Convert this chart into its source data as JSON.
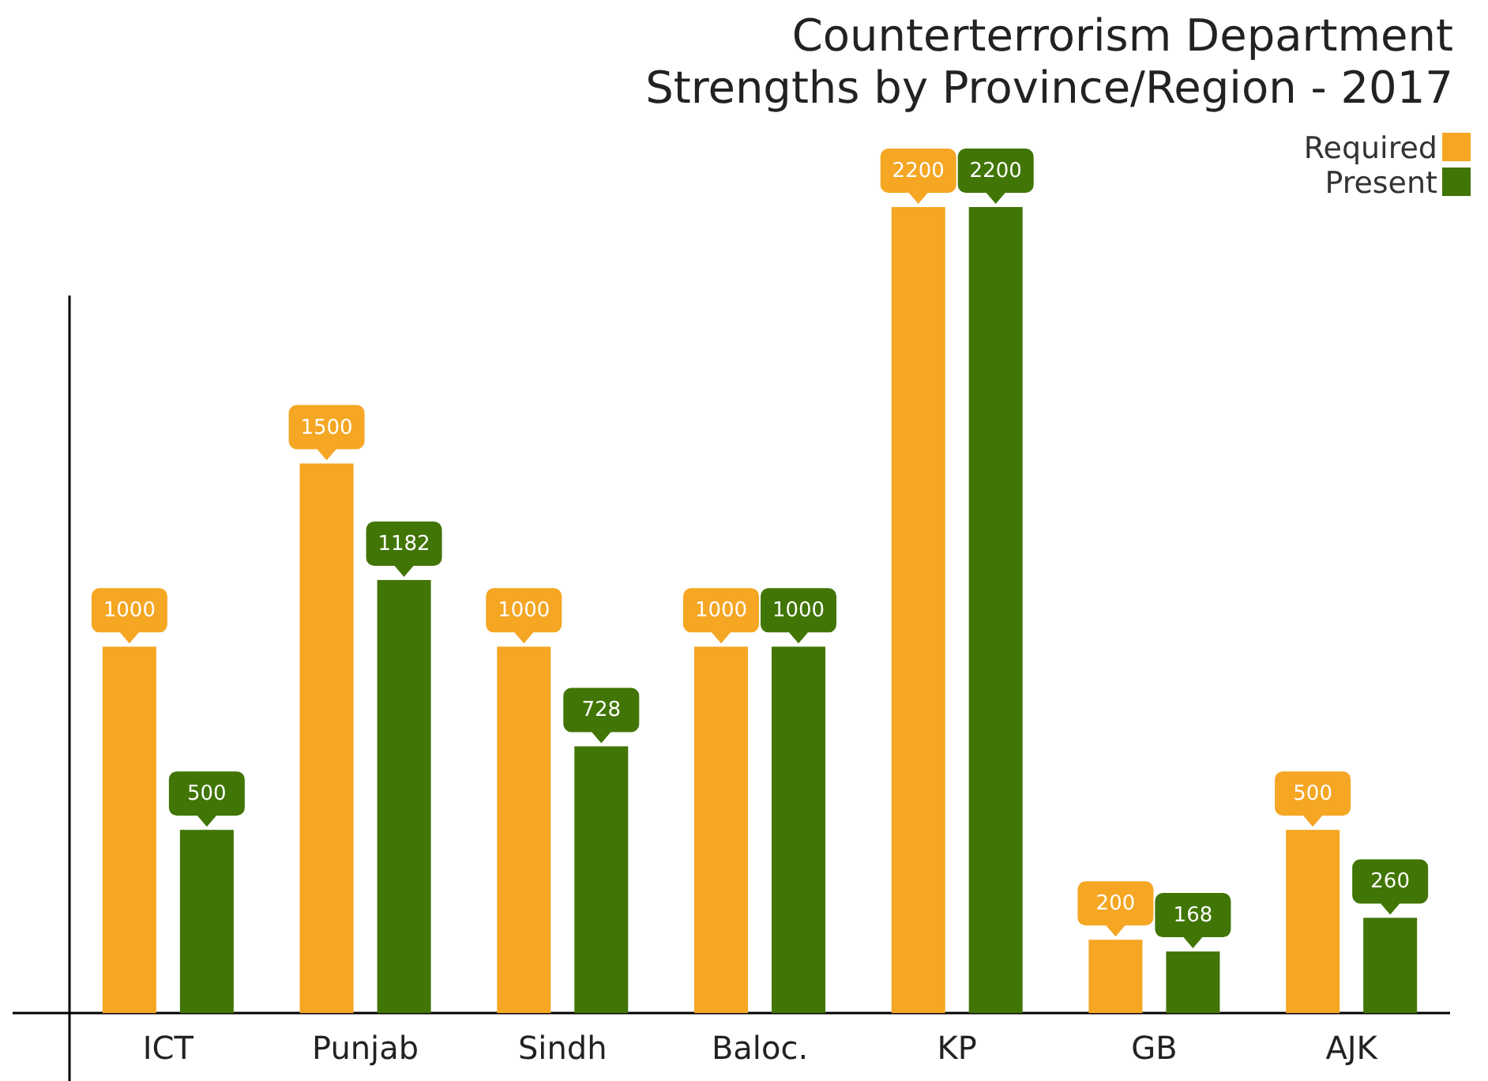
{
  "chart_data": {
    "type": "bar",
    "title": "Counterterrorism Department\nStrengths by Province/Region - 2017",
    "categories": [
      "ICT",
      "Punjab",
      "Sindh",
      "Baloc.",
      "KP",
      "GB",
      "AJK"
    ],
    "series": [
      {
        "name": "Required",
        "color": "#f5a623",
        "values": [
          1000,
          1500,
          1000,
          1000,
          2200,
          200,
          500
        ]
      },
      {
        "name": "Present",
        "color": "#417505",
        "values": [
          500,
          1182,
          728,
          1000,
          2200,
          168,
          260
        ]
      }
    ],
    "data_labels": true,
    "legend": "top right"
  }
}
